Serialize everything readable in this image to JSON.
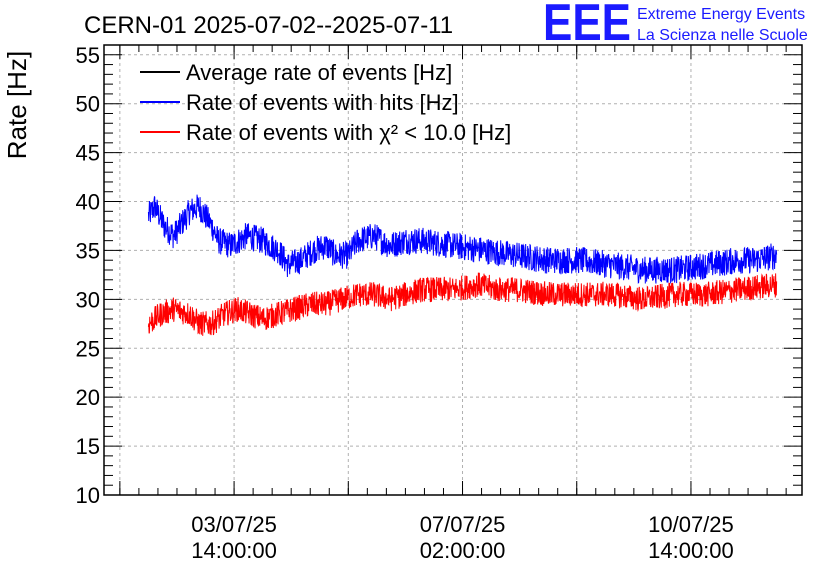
{
  "title": "CERN-01 2025-07-02--2025-07-11",
  "logo": {
    "mark": "EEE",
    "line1": "Extreme Energy Events",
    "line2": "La Scienza nelle Scuole"
  },
  "chart_data": {
    "type": "line",
    "title": "CERN-01 2025-07-02--2025-07-11",
    "xlabel": "",
    "ylabel": "Rate [Hz]",
    "ylim": [
      10,
      56
    ],
    "yticks": [
      10,
      15,
      20,
      25,
      30,
      35,
      40,
      45,
      50,
      55
    ],
    "xlim_hours": [
      0,
      220
    ],
    "xticks": [
      {
        "hour": 41,
        "date": "03/07/25",
        "time": "14:00:00"
      },
      {
        "hour": 113,
        "date": "07/07/25",
        "time": "02:00:00"
      },
      {
        "hour": 185,
        "date": "10/07/25",
        "time": "14:00:00"
      }
    ],
    "grid": true,
    "legend_position": "top-left",
    "legend": [
      {
        "label": "Average rate of events [Hz]",
        "color": "#000000"
      },
      {
        "label": "Rate of events with hits [Hz]",
        "color": "#0000ff"
      },
      {
        "label": "Rate of events with χ² < 10.0 [Hz]",
        "color": "#ff0000"
      }
    ],
    "series": [
      {
        "name": "Rate of events with hits [Hz]",
        "color": "#0000ff",
        "noise": 1.4,
        "x": [
          14,
          16,
          19,
          22,
          24,
          27,
          30,
          34,
          36,
          40,
          45,
          50,
          55,
          58,
          62,
          66,
          70,
          73,
          77,
          80,
          85,
          90,
          95,
          100,
          110,
          120,
          130,
          140,
          150,
          160,
          170,
          180,
          190,
          200,
          205,
          212
        ],
        "values": [
          38.5,
          39.5,
          37.5,
          36.5,
          37.5,
          39.0,
          39.5,
          37.5,
          36.0,
          35.5,
          36.5,
          36.0,
          35.0,
          33.5,
          34.0,
          35.0,
          35.5,
          34.5,
          34.5,
          36.0,
          36.5,
          35.5,
          36.0,
          36.0,
          35.5,
          35.0,
          34.5,
          34.0,
          34.0,
          33.5,
          33.0,
          33.0,
          33.5,
          34.0,
          34.0,
          34.5
        ]
      },
      {
        "name": "Rate of events with χ² < 10.0 [Hz]",
        "color": "#ff0000",
        "noise": 1.3,
        "x": [
          14,
          18,
          22,
          27,
          30,
          34,
          38,
          42,
          46,
          50,
          55,
          60,
          65,
          70,
          75,
          80,
          85,
          90,
          95,
          100,
          110,
          118,
          124,
          130,
          140,
          150,
          160,
          170,
          180,
          190,
          200,
          212
        ],
        "values": [
          27.5,
          28.5,
          29.0,
          28.5,
          27.5,
          27.5,
          28.5,
          29.0,
          28.5,
          28.0,
          28.5,
          29.0,
          29.5,
          29.5,
          30.0,
          30.5,
          30.5,
          30.0,
          30.5,
          31.0,
          31.0,
          31.5,
          31.0,
          31.0,
          30.5,
          30.5,
          30.5,
          30.0,
          30.5,
          30.5,
          31.0,
          31.5
        ]
      }
    ]
  }
}
